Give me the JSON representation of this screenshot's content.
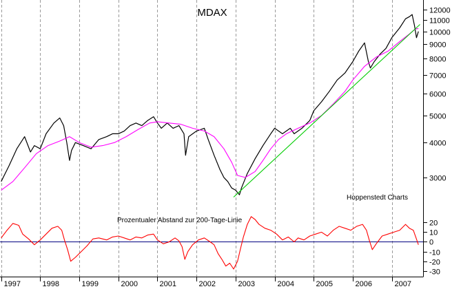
{
  "chart_data": [
    {
      "type": "line",
      "title": "MDAX",
      "y_scale": "log",
      "ylim": [
        2500,
        12600
      ],
      "x_range": [
        1996.97,
        2007.8
      ],
      "yticks": [
        3000,
        4000,
        5000,
        6000,
        7000,
        8000,
        9000,
        10000,
        11000,
        12000
      ],
      "ytick_labels": [
        "3000",
        "4000",
        "5000",
        "6000",
        "7000",
        "8000",
        "9000",
        "10000",
        "11000",
        "12000"
      ],
      "xtick_labels": [
        "1997",
        "1998",
        "1999",
        "2000",
        "2001",
        "2002",
        "2003",
        "2004",
        "2005",
        "2006",
        "2007"
      ],
      "grid": "vertical dashed at year starts",
      "annotation": "Hoppenstedt Charts",
      "series": [
        {
          "color": "#000000",
          "x": [
            1997.0,
            1997.2,
            1997.4,
            1997.6,
            1997.75,
            1997.85,
            1998.0,
            1998.15,
            1998.35,
            1998.5,
            1998.6,
            1998.68,
            1998.75,
            1998.8,
            1998.9,
            1999.1,
            1999.3,
            1999.5,
            1999.7,
            1999.85,
            2000.0,
            2000.15,
            2000.3,
            2000.45,
            2000.6,
            2000.75,
            2000.9,
            2001.0,
            2001.1,
            2001.25,
            2001.4,
            2001.55,
            2001.68,
            2001.72,
            2001.8,
            2002.0,
            2002.2,
            2002.3,
            2002.45,
            2002.6,
            2002.7,
            2002.8,
            2002.9,
            2003.0,
            2003.1,
            2003.15,
            2003.3,
            2003.5,
            2003.7,
            2003.9,
            2004.0,
            2004.2,
            2004.4,
            2004.5,
            2004.7,
            2004.9,
            2005.0,
            2005.2,
            2005.4,
            2005.6,
            2005.8,
            2006.0,
            2006.15,
            2006.3,
            2006.4,
            2006.45,
            2006.55,
            2006.7,
            2006.85,
            2007.0,
            2007.2,
            2007.35,
            2007.45,
            2007.52,
            2007.58,
            2007.63,
            2007.68
          ],
          "y": [
            2900,
            3300,
            3800,
            4200,
            3700,
            3900,
            3800,
            4300,
            4700,
            4900,
            4600,
            4000,
            3450,
            3750,
            4000,
            3900,
            3800,
            4100,
            4200,
            4300,
            4300,
            4400,
            4600,
            4700,
            4600,
            4800,
            4950,
            4700,
            4500,
            4700,
            4500,
            4600,
            4300,
            3600,
            4200,
            4400,
            4500,
            4100,
            3600,
            3200,
            3000,
            2900,
            2750,
            2700,
            2600,
            2750,
            3100,
            3500,
            3900,
            4300,
            4500,
            4300,
            4500,
            4300,
            4500,
            4800,
            5200,
            5600,
            6100,
            6700,
            7100,
            7800,
            8500,
            9100,
            7800,
            7400,
            7800,
            8300,
            8700,
            9500,
            10300,
            11100,
            11300,
            11500,
            10500,
            9500,
            10000
          ]
        },
        {
          "color": "#ff00ff",
          "x": [
            1997.0,
            1997.3,
            1997.6,
            1997.9,
            1998.2,
            1998.5,
            1998.75,
            1999.0,
            1999.3,
            1999.6,
            1999.9,
            2000.2,
            2000.5,
            2000.8,
            2001.0,
            2001.3,
            2001.6,
            2001.9,
            2002.2,
            2002.45,
            2002.7,
            2002.9,
            2003.05,
            2003.25,
            2003.5,
            2003.7,
            2003.9,
            2004.1,
            2004.3,
            2004.6,
            2004.9,
            2005.2,
            2005.5,
            2005.8,
            2006.0,
            2006.3,
            2006.6,
            2006.9,
            2007.2,
            2007.45,
            2007.6,
            2007.68
          ],
          "y": [
            2700,
            2900,
            3250,
            3650,
            3900,
            4050,
            4200,
            4000,
            3850,
            3900,
            4000,
            4200,
            4450,
            4700,
            4750,
            4700,
            4650,
            4500,
            4400,
            4200,
            3800,
            3400,
            3050,
            3000,
            3150,
            3450,
            3800,
            4100,
            4300,
            4500,
            4700,
            5000,
            5500,
            6100,
            6700,
            7500,
            8100,
            8500,
            9200,
            9800,
            10200,
            10250
          ]
        },
        {
          "color": "#00cc00",
          "x": [
            2002.95,
            2007.72
          ],
          "y": [
            2550,
            10600
          ]
        }
      ]
    },
    {
      "type": "line",
      "title": "Prozentualer Abstand zur 200-Tage-Linie",
      "ylim": [
        -33,
        28
      ],
      "x_range": [
        1996.97,
        2007.8
      ],
      "yticks": [
        -30,
        -20,
        -10,
        0,
        10,
        20
      ],
      "ytick_labels": [
        "-30",
        "-20",
        "-10",
        "0",
        "10",
        "20"
      ],
      "zero_line": true,
      "series": [
        {
          "color": "#ff0000",
          "x": [
            1997.0,
            1997.15,
            1997.3,
            1997.45,
            1997.55,
            1997.7,
            1997.85,
            1998.0,
            1998.15,
            1998.3,
            1998.45,
            1998.55,
            1998.62,
            1998.7,
            1998.78,
            1998.9,
            1999.05,
            1999.2,
            1999.35,
            1999.5,
            1999.7,
            1999.85,
            2000.0,
            2000.15,
            2000.3,
            2000.45,
            2000.6,
            2000.75,
            2000.9,
            2001.0,
            2001.15,
            2001.3,
            2001.45,
            2001.55,
            2001.63,
            2001.7,
            2001.78,
            2001.9,
            2002.05,
            2002.2,
            2002.35,
            2002.45,
            2002.55,
            2002.65,
            2002.75,
            2002.85,
            2002.95,
            2003.05,
            2003.12,
            2003.2,
            2003.3,
            2003.4,
            2003.5,
            2003.6,
            2003.75,
            2003.9,
            2004.05,
            2004.2,
            2004.35,
            2004.5,
            2004.6,
            2004.75,
            2004.9,
            2005.05,
            2005.2,
            2005.35,
            2005.5,
            2005.65,
            2005.8,
            2005.95,
            2006.1,
            2006.25,
            2006.35,
            2006.42,
            2006.5,
            2006.6,
            2006.75,
            2006.9,
            2007.05,
            2007.2,
            2007.35,
            2007.45,
            2007.55,
            2007.62,
            2007.68
          ],
          "y": [
            4,
            12,
            19,
            17,
            8,
            3,
            -3,
            2,
            8,
            14,
            16,
            12,
            2,
            -8,
            -20,
            -16,
            -10,
            -4,
            3,
            4,
            2,
            5,
            6,
            4,
            2,
            5,
            4,
            7,
            8,
            2,
            -2,
            0,
            4,
            1,
            -5,
            -18,
            -10,
            -3,
            2,
            4,
            0,
            -3,
            -12,
            -18,
            -25,
            -22,
            -28,
            -20,
            -8,
            5,
            18,
            26,
            23,
            18,
            14,
            12,
            8,
            2,
            5,
            0,
            4,
            2,
            6,
            8,
            10,
            6,
            12,
            16,
            14,
            12,
            16,
            18,
            12,
            2,
            -8,
            -2,
            6,
            8,
            10,
            12,
            18,
            14,
            12,
            4,
            -3
          ]
        }
      ]
    }
  ]
}
